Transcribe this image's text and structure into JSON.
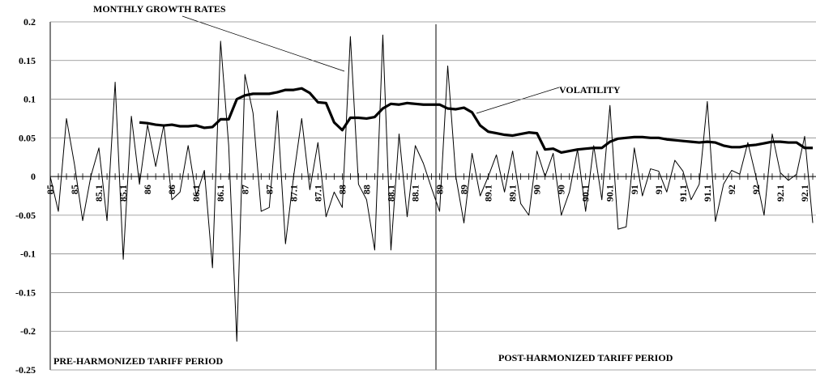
{
  "chart_data": {
    "type": "line",
    "annotations": [
      "MONTHLY GROWTH RATES",
      "VOLATILITY",
      "PRE-HARMONIZED TARIFF PERIOD",
      "POST-HARMONIZED TARIFF PERIOD"
    ],
    "categories": [
      "85",
      null,
      null,
      "85",
      null,
      null,
      "85.1",
      null,
      null,
      "85.1",
      null,
      null,
      "86",
      null,
      null,
      "86",
      null,
      null,
      "86.1",
      null,
      null,
      "86.1",
      null,
      null,
      "87",
      null,
      null,
      "87",
      null,
      null,
      "87.1",
      null,
      null,
      "87.1",
      null,
      null,
      "88",
      null,
      null,
      "88",
      null,
      null,
      "88.1",
      null,
      null,
      "88.1",
      null,
      null,
      "89",
      null,
      null,
      "89",
      null,
      null,
      "89.1",
      null,
      null,
      "89.1",
      null,
      null,
      "90",
      null,
      null,
      "90",
      null,
      null,
      "90.1",
      null,
      null,
      "90.1",
      null,
      null,
      "91",
      null,
      null,
      "91",
      null,
      null,
      "91.1",
      null,
      null,
      "91.1",
      null,
      null,
      "92",
      null,
      null,
      "92",
      null,
      null,
      "92.1",
      null,
      null,
      "92.1",
      null
    ],
    "series": [
      {
        "name": "MONTHLY GROWTH RATES",
        "color": "#000000",
        "values": [
          0.0,
          -0.045,
          0.075,
          0.015,
          -0.057,
          0.0,
          0.037,
          -0.057,
          0.122,
          -0.107,
          0.078,
          -0.01,
          0.067,
          0.013,
          0.067,
          -0.03,
          -0.02,
          0.04,
          -0.025,
          0.008,
          -0.118,
          0.175,
          0.04,
          -0.213,
          0.132,
          0.082,
          -0.045,
          -0.04,
          0.085,
          -0.087,
          0.0,
          0.075,
          -0.017,
          0.044,
          -0.052,
          -0.02,
          -0.04,
          0.181,
          -0.01,
          -0.03,
          -0.095,
          0.183,
          -0.095,
          0.055,
          -0.052,
          0.04,
          0.017,
          -0.015,
          -0.045,
          0.143,
          0.0,
          -0.06,
          0.03,
          -0.025,
          0.0,
          0.028,
          -0.02,
          0.033,
          -0.035,
          -0.05,
          0.033,
          0.0,
          0.03,
          -0.05,
          -0.02,
          0.035,
          -0.045,
          0.04,
          -0.03,
          0.092,
          -0.068,
          -0.065,
          0.037,
          -0.025,
          0.01,
          0.007,
          -0.02,
          0.021,
          0.007,
          -0.03,
          -0.01,
          0.097,
          -0.058,
          -0.01,
          0.008,
          0.003,
          0.044,
          0.0,
          -0.05,
          0.055,
          0.005,
          -0.005,
          0.003,
          0.052,
          -0.06
        ]
      },
      {
        "name": "VOLATILITY",
        "color": "#000000",
        "values": [
          null,
          null,
          null,
          null,
          null,
          null,
          null,
          null,
          null,
          null,
          null,
          0.07,
          0.069,
          0.067,
          0.066,
          0.067,
          0.065,
          0.065,
          0.066,
          0.063,
          0.064,
          0.074,
          0.074,
          0.1,
          0.105,
          0.107,
          0.107,
          0.107,
          0.109,
          0.112,
          0.112,
          0.114,
          0.108,
          0.096,
          0.095,
          0.07,
          0.06,
          0.076,
          0.076,
          0.075,
          0.077,
          0.088,
          0.094,
          0.093,
          0.095,
          0.094,
          0.093,
          0.093,
          0.093,
          0.088,
          0.087,
          0.089,
          0.083,
          0.066,
          0.058,
          0.056,
          0.054,
          0.053,
          0.055,
          0.057,
          0.056,
          0.035,
          0.036,
          0.031,
          0.033,
          0.035,
          0.036,
          0.037,
          0.037,
          0.045,
          0.049,
          0.05,
          0.051,
          0.051,
          0.05,
          0.05,
          0.048,
          0.047,
          0.046,
          0.045,
          0.044,
          0.045,
          0.044,
          0.04,
          0.038,
          0.038,
          0.04,
          0.041,
          0.043,
          0.045,
          0.045,
          0.044,
          0.044,
          0.037,
          0.037
        ]
      }
    ],
    "ylim": [
      -0.25,
      0.2
    ],
    "yticks": [
      -0.25,
      -0.2,
      -0.15,
      -0.1,
      -0.05,
      0,
      0.05,
      0.1,
      0.15,
      0.2
    ],
    "grid": true
  }
}
